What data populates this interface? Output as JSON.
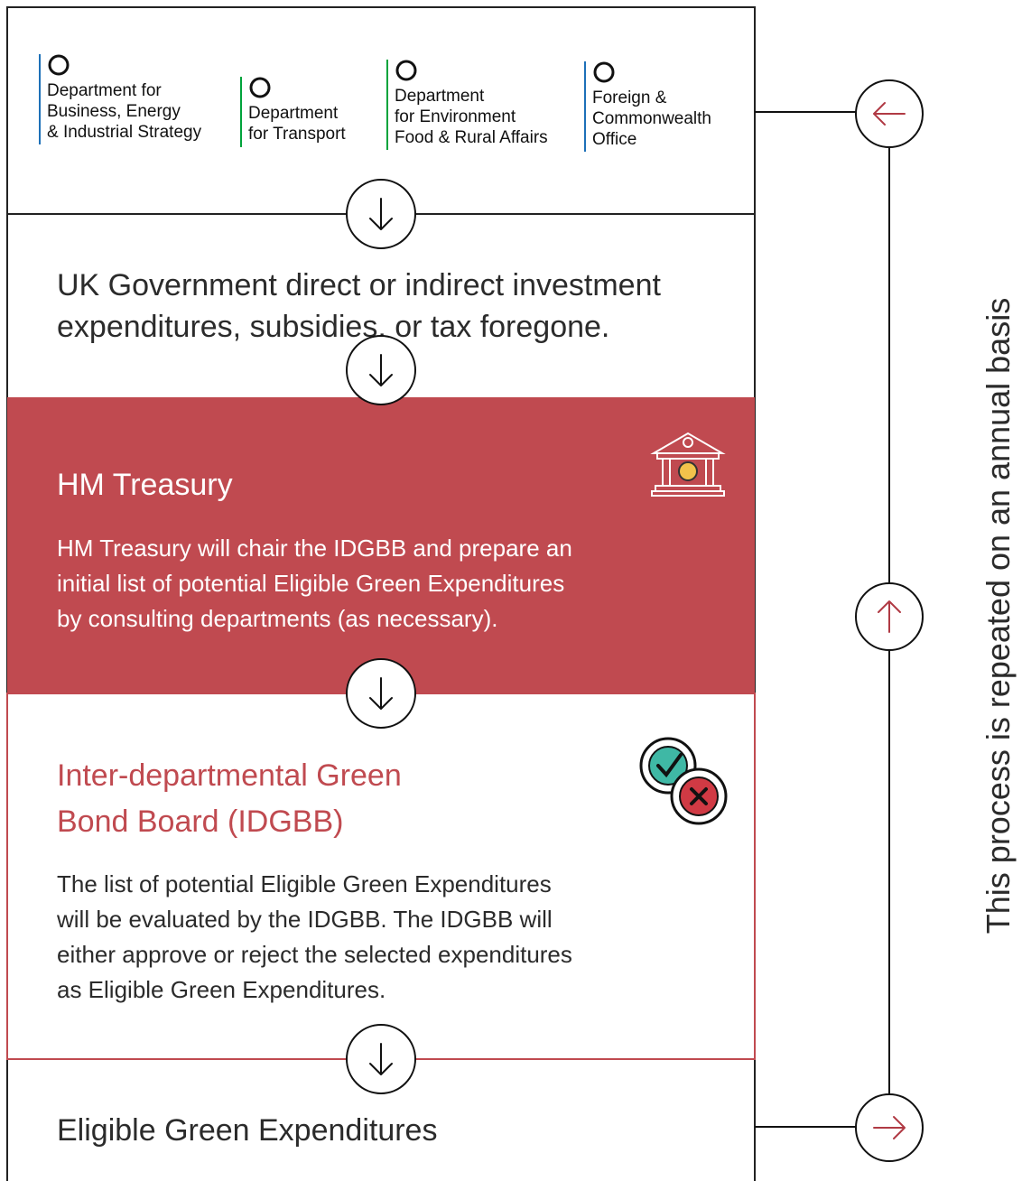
{
  "logos": [
    {
      "lines": [
        "Department for",
        "Business, Energy",
        "& Industrial Strategy"
      ]
    },
    {
      "lines": [
        "Department",
        "for Transport"
      ]
    },
    {
      "lines": [
        "Department",
        "for Environment",
        "Food & Rural Affairs"
      ]
    },
    {
      "lines": [
        "Foreign &",
        "Commonwealth",
        "Office"
      ]
    }
  ],
  "steps": [
    {
      "lines": [
        "UK Government direct or indirect investment",
        "expenditures, subsidies, or tax foregone."
      ]
    },
    {
      "title": "HM Treasury",
      "lines": [
        "HM Treasury will chair the IDGBB and prepare an",
        "initial list of potential Eligible Green Expenditures",
        "by consulting departments (as necessary)."
      ]
    },
    {
      "title": [
        "Inter-departmental Green",
        "Bond Board (IDGBB)"
      ],
      "lines": [
        "The list of potential Eligible Green Expenditures",
        "will be evaluated by the IDGBB. The IDGBB will",
        "either approve or reject the selected expenditures",
        "as Eligible Green Expenditures."
      ]
    },
    {
      "lines": [
        "Eligible Green Expenditures"
      ]
    }
  ],
  "side_note": "This process is repeated on an annual basis"
}
